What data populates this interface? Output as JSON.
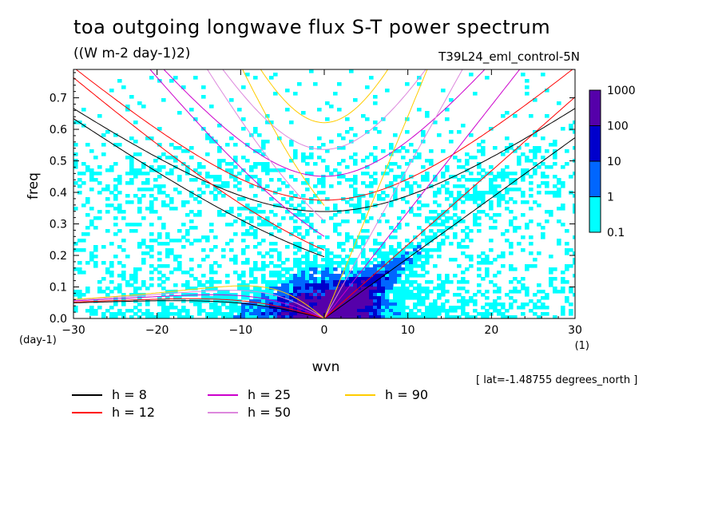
{
  "title": "toa outgoing longwave flux S-T power spectrum",
  "subtitle": "((W m-2 day-1)2)",
  "dataset": "T39L24_eml_control-5N",
  "annotation": "[ lat=-1.48755 degrees_north ]",
  "chart_data": {
    "type": "heatmap",
    "xlabel": "wvn",
    "ylabel": "freq",
    "xunit": "(1)",
    "yunit": "(day-1)",
    "xlim": [
      -30,
      30
    ],
    "ylim": [
      0,
      0.79
    ],
    "xticks": [
      -30,
      -20,
      -10,
      0,
      10,
      20,
      30
    ],
    "yticks": [
      0.0,
      0.1,
      0.2,
      0.3,
      0.4,
      0.5,
      0.6,
      0.7
    ],
    "ytick_labels": [
      "0.0",
      "0.1",
      "0.2",
      "0.3",
      "0.4",
      "0.5",
      "0.6",
      "0.7"
    ],
    "colorbar": {
      "levels": [
        "0.1",
        "1",
        "10",
        "100",
        "1000"
      ],
      "colors": [
        "#00ffff",
        "#0066ff",
        "#0000cc",
        "#5500aa"
      ]
    },
    "curves": [
      {
        "label": "h =  8",
        "h": 8,
        "color": "#000000"
      },
      {
        "label": "h = 12",
        "h": 12,
        "color": "#ff0000"
      },
      {
        "label": "h = 25",
        "h": 25,
        "color": "#cc00cc"
      },
      {
        "label": "h = 50",
        "h": 50,
        "color": "#dd88dd"
      },
      {
        "label": "h = 90",
        "h": 90,
        "color": "#ffcc00"
      }
    ]
  }
}
